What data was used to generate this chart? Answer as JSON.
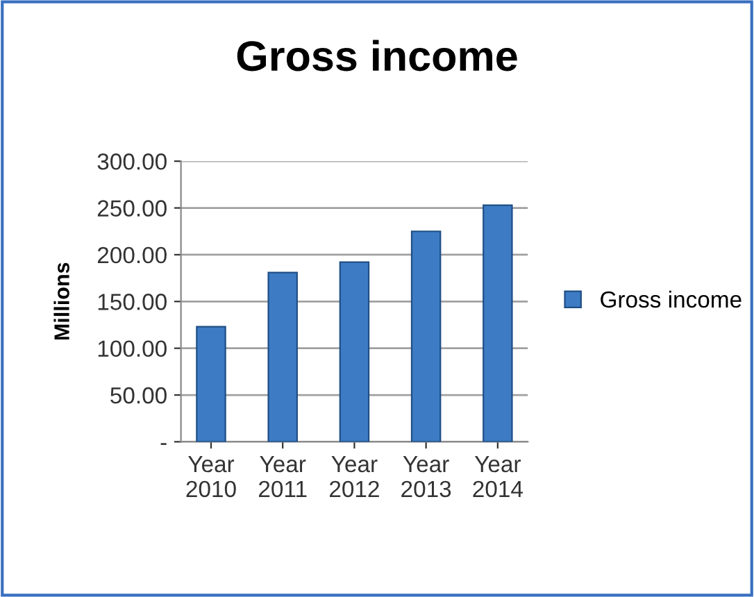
{
  "chart_data": {
    "type": "bar",
    "title": "Gross income",
    "ylabel": "Millions",
    "categories": [
      "Year\n2010",
      "Year\n2011",
      "Year\n2012",
      "Year\n2013",
      "Year\n2014"
    ],
    "series": [
      {
        "name": "Gross income",
        "color": "#3d7cc4",
        "values": [
          123,
          181,
          192,
          225,
          253
        ]
      }
    ],
    "ylim": [
      0,
      300
    ],
    "yticks": [
      {
        "value": 0,
        "label": "-"
      },
      {
        "value": 50,
        "label": "50.00"
      },
      {
        "value": 100,
        "label": "100.00"
      },
      {
        "value": 150,
        "label": "150.00"
      },
      {
        "value": 200,
        "label": "200.00"
      },
      {
        "value": 250,
        "label": "250.00"
      },
      {
        "value": 300,
        "label": "300.00"
      }
    ],
    "grid": "y",
    "legend": "right"
  }
}
